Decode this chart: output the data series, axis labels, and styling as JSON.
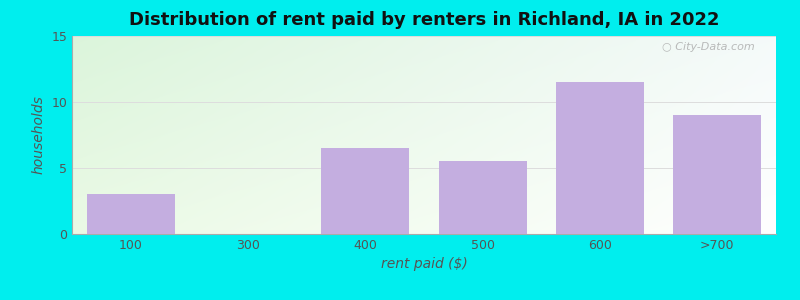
{
  "title": "Distribution of rent paid by renters in Richland, IA in 2022",
  "xlabel": "rent paid ($)",
  "ylabel": "households",
  "categories": [
    "100",
    "300",
    "400",
    "500",
    "600",
    ">700"
  ],
  "values": [
    3,
    0,
    6.5,
    5.5,
    11.5,
    9
  ],
  "bar_color": "#c4aee0",
  "ylim": [
    0,
    15
  ],
  "yticks": [
    0,
    5,
    10,
    15
  ],
  "background_outer": "#00eeee",
  "title_fontsize": 13,
  "axis_label_fontsize": 10,
  "tick_fontsize": 9,
  "watermark_text": "City-Data.com",
  "grid_color": "#dddddd",
  "bar_width": 0.75,
  "grad_topleft": [
    0.86,
    0.96,
    0.86
  ],
  "grad_topright": [
    0.96,
    0.98,
    0.98
  ],
  "grad_botleft": [
    0.92,
    0.98,
    0.9
  ],
  "grad_botright": [
    1.0,
    1.0,
    1.0
  ]
}
